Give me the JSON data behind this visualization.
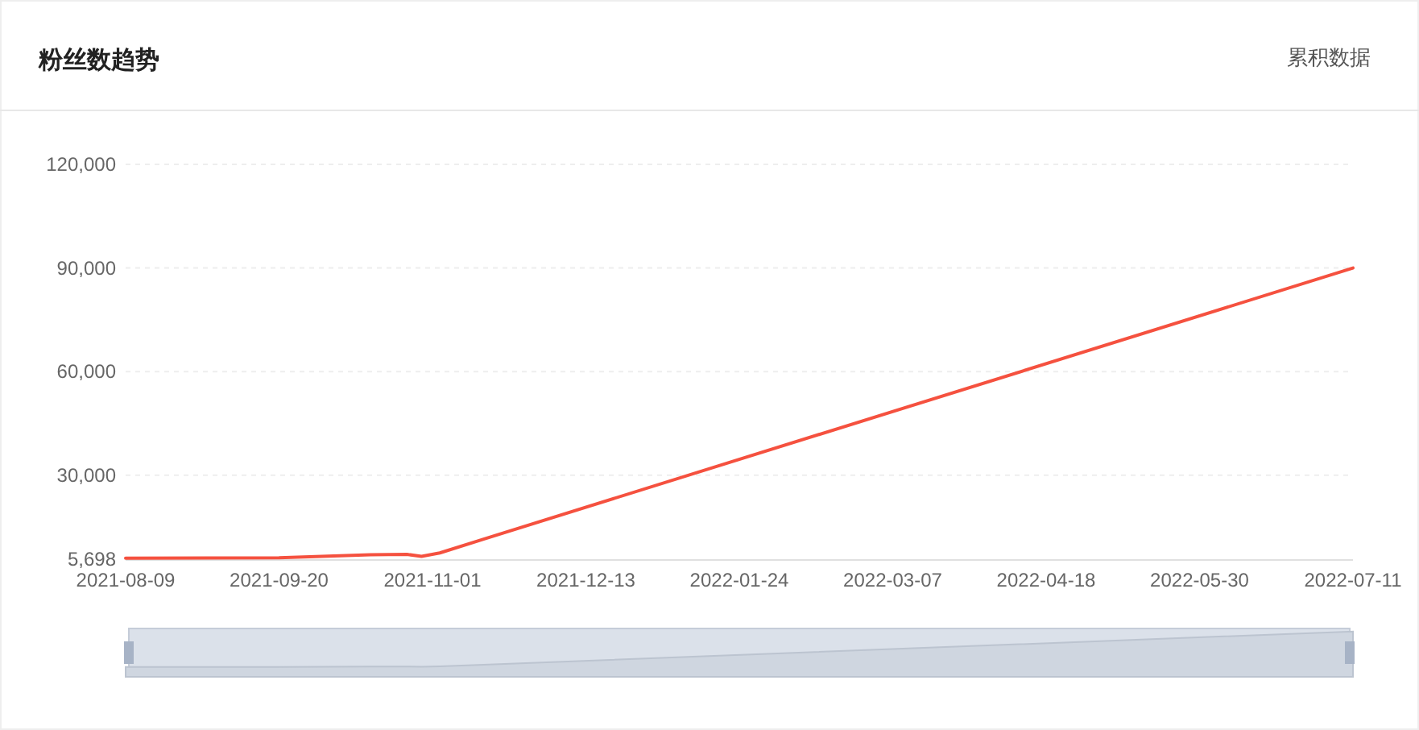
{
  "chart_data": {
    "type": "line",
    "title": "粉丝数趋势",
    "annotations": [
      "累积数据"
    ],
    "x": [
      "2021-08-09",
      "2021-09-20",
      "2021-10-15",
      "2021-10-25",
      "2021-10-29",
      "2021-11-03",
      "2021-11-15",
      "2022-07-11"
    ],
    "series": [
      {
        "color": "#f5513f",
        "values": [
          6000,
          6100,
          7000,
          7100,
          6500,
          7500,
          11500,
          90000
        ]
      }
    ],
    "xlim": [
      "2021-08-09",
      "2022-07-11"
    ],
    "xticks": [
      "2021-08-09",
      "2021-09-20",
      "2021-11-01",
      "2021-12-13",
      "2022-01-24",
      "2022-03-07",
      "2022-04-18",
      "2022-05-30",
      "2022-07-11"
    ],
    "ylim": [
      5698,
      120000
    ],
    "yticks": [
      {
        "value": 5698,
        "label": "5,698"
      },
      {
        "value": 30000,
        "label": "30,000"
      },
      {
        "value": 60000,
        "label": "60,000"
      },
      {
        "value": 90000,
        "label": "90,000"
      },
      {
        "value": 120000,
        "label": "120,000"
      }
    ],
    "grid": "y",
    "marker": "none",
    "line_style": "solid"
  }
}
